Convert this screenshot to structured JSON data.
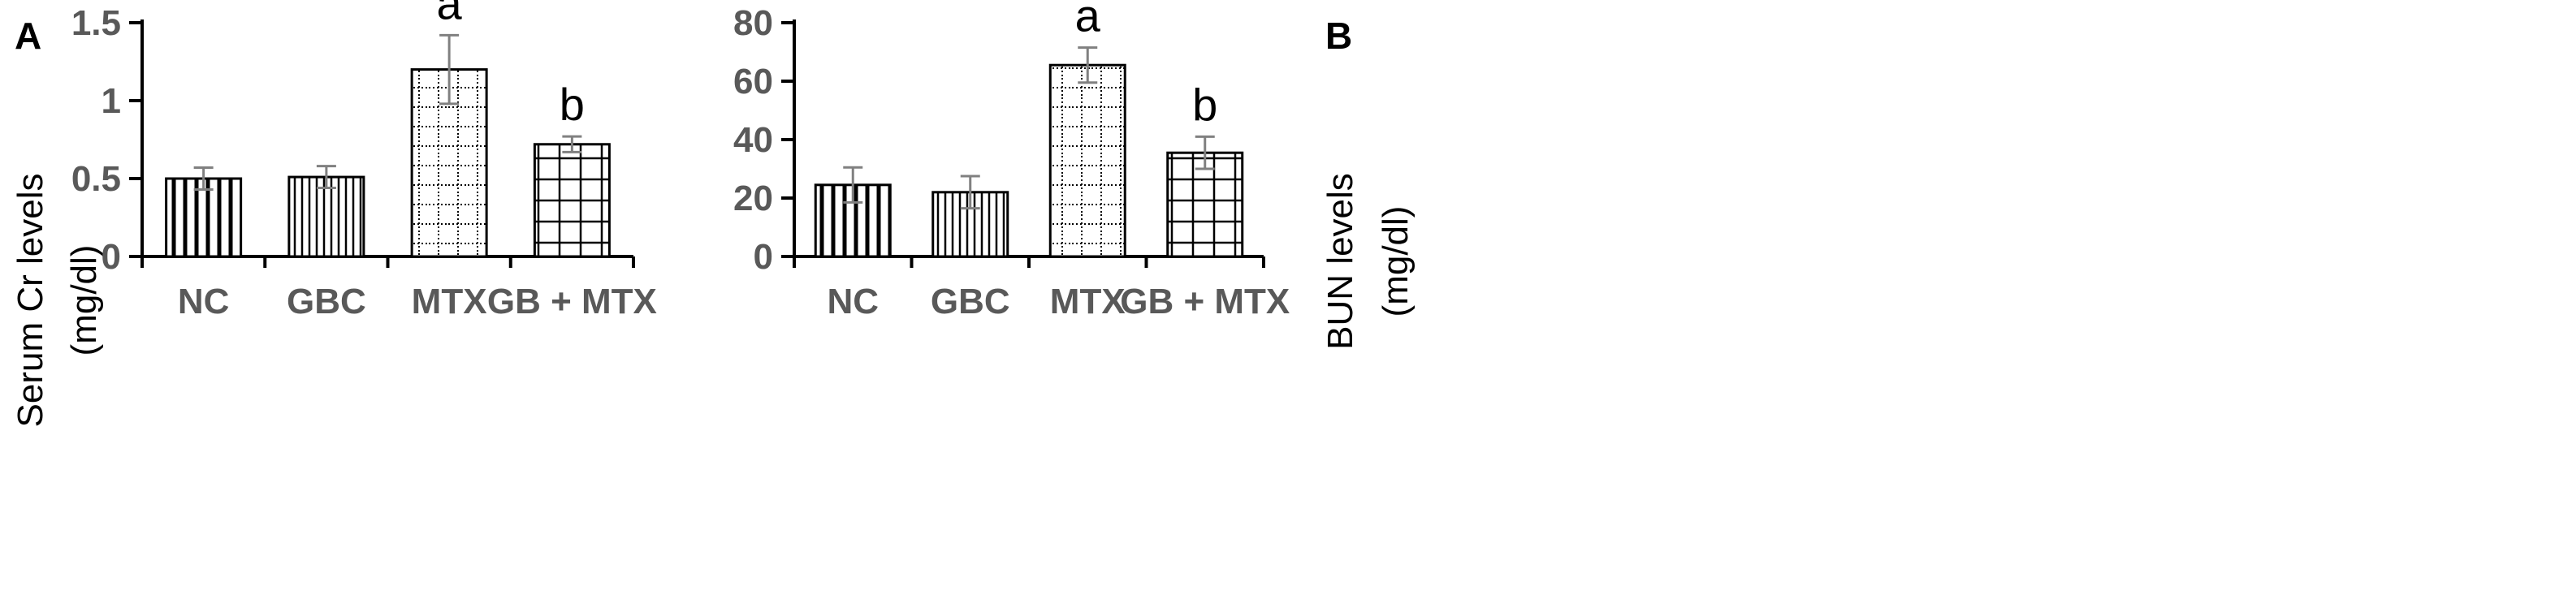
{
  "chart_data": [
    {
      "type": "bar",
      "panel": "A",
      "categories": [
        "NC",
        "GBC",
        "MTX",
        "GB + MTX"
      ],
      "values": [
        0.5,
        0.51,
        1.2,
        0.72
      ],
      "errors": [
        0.07,
        0.07,
        0.22,
        0.05
      ],
      "significance": [
        "",
        "",
        "a",
        "b"
      ],
      "patterns": [
        "vertical-wide",
        "vertical-narrow",
        "dotted-grid",
        "grid"
      ],
      "ylabel_lines": [
        "Serum Cr levels",
        "(mg/dl)"
      ],
      "xlabel": "",
      "ylim": [
        0,
        1.5
      ],
      "yticks": [
        "0",
        "0.5",
        "1",
        "1.5"
      ],
      "ytick_values": [
        0,
        0.5,
        1,
        1.5
      ]
    },
    {
      "type": "bar",
      "panel": "B",
      "categories": [
        "NC",
        "GBC",
        "MTX",
        "GB + MTX"
      ],
      "values": [
        24.5,
        22,
        65.5,
        35.5
      ],
      "errors": [
        6,
        5.5,
        6,
        5.5
      ],
      "significance": [
        "",
        "",
        "a",
        "b"
      ],
      "patterns": [
        "vertical-wide",
        "vertical-narrow",
        "dotted-grid",
        "grid"
      ],
      "ylabel_lines": [
        "BUN levels",
        "(mg/dl)"
      ],
      "xlabel": "",
      "ylim": [
        0,
        80
      ],
      "yticks": [
        "0",
        "20",
        "40",
        "60",
        "80"
      ],
      "ytick_values": [
        0,
        20,
        40,
        60,
        80
      ]
    }
  ],
  "colors": {
    "axis": "#000000",
    "tick_text": "#595959",
    "error_bar": "#808080",
    "bar_fill": "#ffffff"
  }
}
